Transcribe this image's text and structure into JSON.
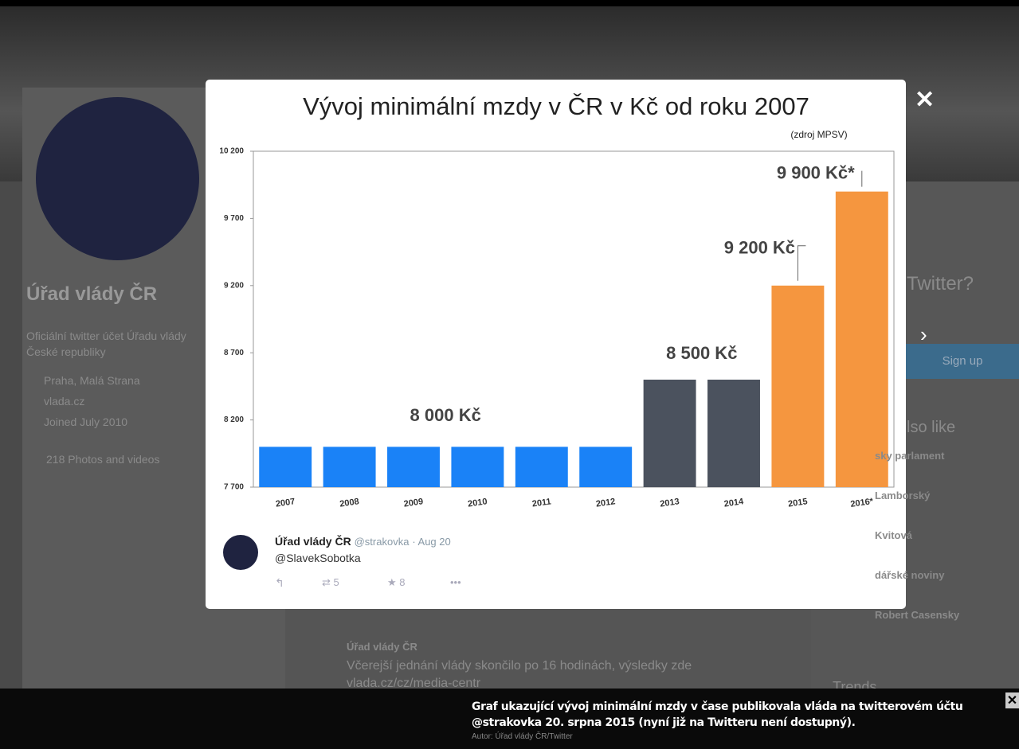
{
  "chart_data": {
    "type": "bar",
    "title": "Vývoj minimální mzdy v ČR v Kč od roku 2007",
    "subtitle": "(zdroj MPSV)",
    "categories": [
      "2007",
      "2008",
      "2009",
      "2010",
      "2011",
      "2012",
      "2013",
      "2014",
      "2015",
      "2016*"
    ],
    "values": [
      8000,
      8000,
      8000,
      8000,
      8000,
      8000,
      8500,
      8500,
      9200,
      9900
    ],
    "colors": [
      "#1a82f7",
      "#1a82f7",
      "#1a82f7",
      "#1a82f7",
      "#1a82f7",
      "#1a82f7",
      "#4b525e",
      "#4b525e",
      "#f5963f",
      "#f5963f"
    ],
    "annotations": [
      "8 000 Kč",
      "8 500 Kč",
      "9 200 Kč",
      "9 900 Kč*"
    ],
    "ylim": [
      7700,
      10200
    ],
    "yticks": [
      {
        "value": 7700,
        "label": "7 700"
      },
      {
        "value": 8200,
        "label": "8 200"
      },
      {
        "value": 8700,
        "label": "8 700"
      },
      {
        "value": 9200,
        "label": "9 200"
      },
      {
        "value": 9700,
        "label": "9 700"
      },
      {
        "value": 10200,
        "label": "10 200"
      }
    ]
  },
  "tweet": {
    "name": "Úřad vlády ČR",
    "handle": "@strakovka",
    "date": "· Aug 20",
    "text": "@SlavekSobotka",
    "retweets": "5",
    "favorites": "8"
  },
  "background": {
    "profile_name": "Úřad vlády ČR",
    "bio": "Oficiální twitter účet Úřadu vlády České republiky",
    "location": "Praha, Malá Strana",
    "website": "vlada.cz",
    "joined": "Joined July 2010",
    "photos": "218 Photos and videos",
    "signup_question": "Twitter?",
    "signup": "Sign up",
    "also_like": "lso like",
    "sidebar": [
      "sky parlament",
      "Lamborský",
      "Kvitová",
      "dářské noviny",
      "Robert Casensky"
    ],
    "tweet2_name": "Úřad vlády ČR",
    "tweet2_text": "Včerejší jednání vlády skončilo po 16 hodinách, výsledky zde vlada.cz/cz/media-centr",
    "trends": "Trends"
  },
  "caption": {
    "text": "Graf ukazující vývoj minimální mzdy v čase publikovala vláda na twitterovém účtu @strakovka 20. srpna 2015 (nyní již na Twitteru není dostupný).",
    "author": "Autor: Úřad vlády ČR/Twitter"
  }
}
